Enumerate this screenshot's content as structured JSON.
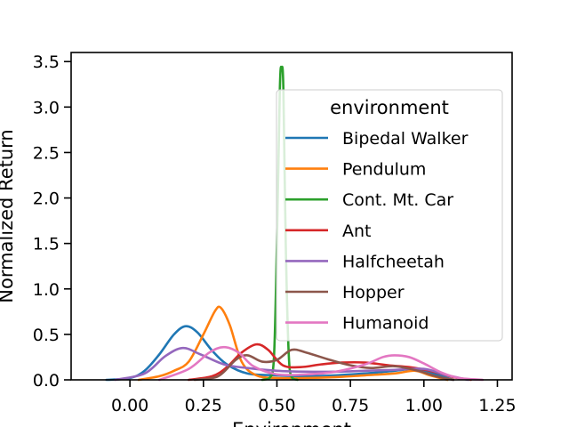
{
  "chart_data": {
    "type": "line",
    "title": "",
    "xlabel": "Environment",
    "ylabel": "Normalized Return",
    "xlim": [
      -0.2,
      1.3
    ],
    "ylim": [
      0,
      3.6
    ],
    "xticks": [
      0.0,
      0.25,
      0.5,
      0.75,
      1.0,
      1.25
    ],
    "xtick_labels": [
      "0.00",
      "0.25",
      "0.50",
      "0.75",
      "1.00",
      "1.25"
    ],
    "yticks": [
      0.0,
      0.5,
      1.0,
      1.5,
      2.0,
      2.5,
      3.0,
      3.5
    ],
    "ytick_labels": [
      "0.0",
      "0.5",
      "1.0",
      "1.5",
      "2.0",
      "2.5",
      "3.0",
      "3.5"
    ],
    "grid": false,
    "legend": {
      "title": "environment",
      "placement": "upper-right"
    },
    "series": [
      {
        "name": "Bipedal Walker",
        "color": "#1f77b4",
        "x": [
          -0.08,
          0.0,
          0.05,
          0.1,
          0.15,
          0.19,
          0.23,
          0.28,
          0.33,
          0.4,
          0.5,
          0.6,
          0.7,
          0.8,
          0.9,
          0.98,
          1.05,
          1.1
        ],
        "y": [
          0.0,
          0.02,
          0.1,
          0.28,
          0.5,
          0.59,
          0.52,
          0.32,
          0.17,
          0.07,
          0.05,
          0.04,
          0.05,
          0.07,
          0.1,
          0.12,
          0.05,
          0.0
        ]
      },
      {
        "name": "Pendulum",
        "color": "#ff7f0e",
        "x": [
          0.03,
          0.1,
          0.15,
          0.2,
          0.25,
          0.29,
          0.31,
          0.34,
          0.38,
          0.43,
          0.5,
          0.6,
          0.7,
          0.8,
          0.9,
          0.97,
          1.02,
          1.08
        ],
        "y": [
          0.0,
          0.04,
          0.1,
          0.2,
          0.5,
          0.76,
          0.79,
          0.6,
          0.2,
          0.05,
          0.02,
          0.02,
          0.03,
          0.05,
          0.07,
          0.1,
          0.05,
          0.0
        ]
      },
      {
        "name": "Cont. Mt. Car",
        "color": "#2ca02c",
        "x": [
          0.45,
          0.475,
          0.49,
          0.5,
          0.51,
          0.516,
          0.522,
          0.53,
          0.54,
          0.55,
          0.57
        ],
        "y": [
          0.0,
          0.02,
          0.25,
          1.5,
          3.2,
          3.43,
          3.2,
          1.5,
          0.3,
          0.03,
          0.0
        ]
      },
      {
        "name": "Ant",
        "color": "#d62728",
        "x": [
          0.2,
          0.28,
          0.33,
          0.38,
          0.43,
          0.47,
          0.52,
          0.58,
          0.65,
          0.72,
          0.8,
          0.88,
          0.95,
          1.02,
          1.1,
          1.16
        ],
        "y": [
          0.0,
          0.04,
          0.14,
          0.3,
          0.39,
          0.33,
          0.16,
          0.14,
          0.17,
          0.19,
          0.19,
          0.16,
          0.14,
          0.1,
          0.03,
          0.0
        ]
      },
      {
        "name": "Halfcheetah",
        "color": "#9467bd",
        "x": [
          -0.05,
          0.05,
          0.12,
          0.18,
          0.24,
          0.32,
          0.4,
          0.5,
          0.6,
          0.7,
          0.8,
          0.9,
          1.0,
          1.08,
          1.15
        ],
        "y": [
          0.0,
          0.07,
          0.26,
          0.35,
          0.28,
          0.17,
          0.13,
          0.1,
          0.09,
          0.09,
          0.1,
          0.11,
          0.12,
          0.05,
          0.0
        ]
      },
      {
        "name": "Hopper",
        "color": "#8c564b",
        "x": [
          0.22,
          0.3,
          0.36,
          0.4,
          0.45,
          0.5,
          0.55,
          0.6,
          0.68,
          0.75,
          0.82,
          0.9,
          0.98,
          1.04,
          1.1
        ],
        "y": [
          0.0,
          0.04,
          0.22,
          0.27,
          0.2,
          0.22,
          0.33,
          0.3,
          0.22,
          0.16,
          0.13,
          0.15,
          0.1,
          0.04,
          0.0
        ]
      },
      {
        "name": "Humanoid",
        "color": "#e377c2",
        "x": [
          0.1,
          0.2,
          0.27,
          0.32,
          0.37,
          0.42,
          0.5,
          0.6,
          0.7,
          0.8,
          0.86,
          0.9,
          0.95,
          1.0,
          1.06,
          1.12,
          1.2
        ],
        "y": [
          0.0,
          0.12,
          0.3,
          0.36,
          0.3,
          0.15,
          0.06,
          0.06,
          0.09,
          0.17,
          0.25,
          0.27,
          0.25,
          0.18,
          0.08,
          0.02,
          0.0
        ]
      }
    ]
  }
}
